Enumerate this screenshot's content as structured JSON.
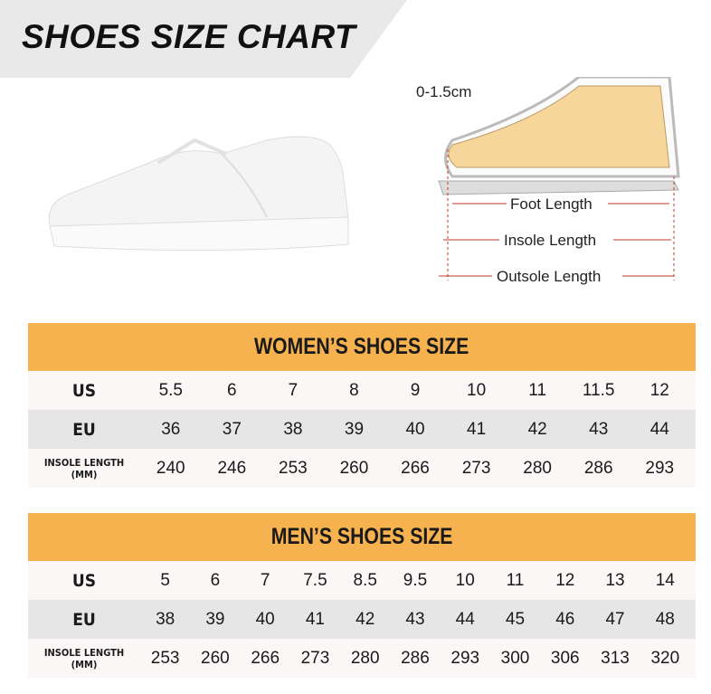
{
  "title": "SHOES SIZE CHART",
  "diagram": {
    "gap": "0-1.5cm",
    "foot": "Foot Length",
    "insole": "Insole Length",
    "outsole": "Outsole Length"
  },
  "women": {
    "title": "WOMEN’S SHOES SIZE",
    "us_label": "US",
    "eu_label": "EU",
    "insole_label": "INSOLE LENGTH",
    "insole_unit": "(MM)",
    "us": [
      "5.5",
      "6",
      "7",
      "8",
      "9",
      "10",
      "11",
      "11.5",
      "12"
    ],
    "eu": [
      "36",
      "37",
      "38",
      "39",
      "40",
      "41",
      "42",
      "43",
      "44"
    ],
    "insole": [
      "240",
      "246",
      "253",
      "260",
      "266",
      "273",
      "280",
      "286",
      "293"
    ]
  },
  "men": {
    "title": "MEN’S SHOES SIZE",
    "us_label": "US",
    "eu_label": "EU",
    "insole_label": "INSOLE LENGTH",
    "insole_unit": "(MM)",
    "us": [
      "5",
      "6",
      "7",
      "7.5",
      "8.5",
      "9.5",
      "10",
      "11",
      "12",
      "13",
      "14"
    ],
    "eu": [
      "38",
      "39",
      "40",
      "41",
      "42",
      "43",
      "44",
      "45",
      "46",
      "47",
      "48"
    ],
    "insole": [
      "253",
      "260",
      "266",
      "273",
      "280",
      "286",
      "293",
      "300",
      "306",
      "313",
      "320"
    ]
  },
  "colors": {
    "header": "#f6b24e",
    "row_light": "#fbf7f7",
    "row_grey": "#e6e6e6",
    "dimension_line": "#c0392b"
  }
}
